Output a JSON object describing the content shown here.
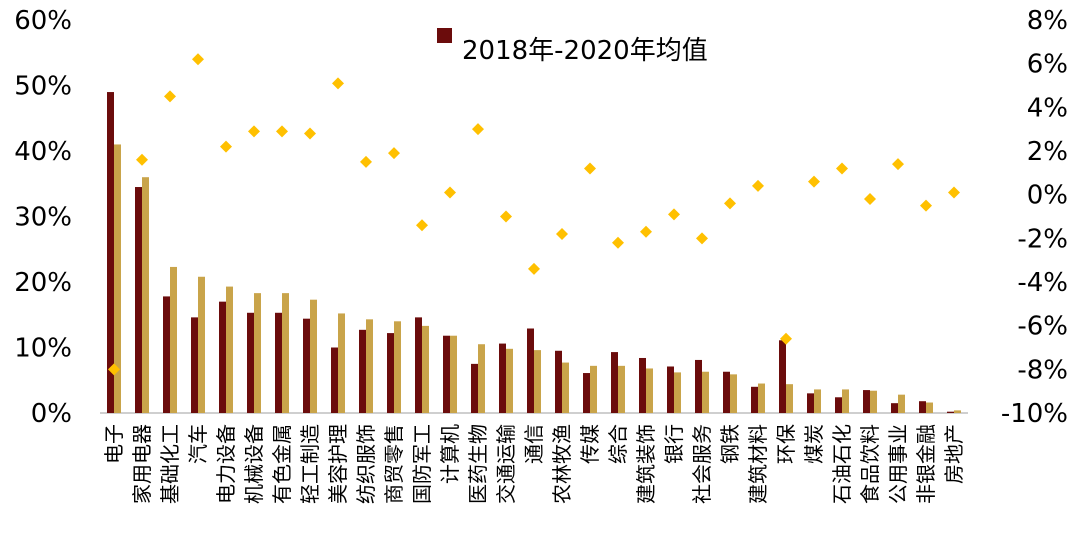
{
  "chart_data": {
    "type": "bar",
    "categories": [
      "电子",
      "家用电器",
      "基础化工",
      "汽车",
      "电力设备",
      "机械设备",
      "有色金属",
      "轻工制造",
      "美容护理",
      "纺织服饰",
      "商贸零售",
      "国防军工",
      "计算机",
      "医药生物",
      "交通运输",
      "通信",
      "农林牧渔",
      "传媒",
      "综合",
      "建筑装饰",
      "银行",
      "社会服务",
      "钢铁",
      "建筑材料",
      "环保",
      "煤炭",
      "石油石化",
      "食品饮料",
      "公用事业",
      "非银金融",
      "房地产"
    ],
    "series": [
      {
        "name": "2018年-2020年均值",
        "axis": "left",
        "color": "#6b0c0c",
        "values": [
          49.0,
          34.5,
          17.8,
          14.6,
          17.0,
          15.3,
          15.3,
          14.4,
          10.0,
          12.7,
          12.2,
          14.6,
          11.8,
          7.5,
          10.6,
          12.9,
          9.5,
          6.1,
          9.3,
          8.4,
          7.1,
          8.1,
          6.3,
          4.0,
          11.1,
          3.0,
          2.4,
          3.5,
          1.5,
          1.8,
          0.2
        ]
      },
      {
        "name": "",
        "axis": "left",
        "color": "#c9a44a",
        "values": [
          41.0,
          36.0,
          22.3,
          20.8,
          19.3,
          18.3,
          18.3,
          17.3,
          15.2,
          14.3,
          14.0,
          13.3,
          11.8,
          10.5,
          9.8,
          9.6,
          7.7,
          7.2,
          7.2,
          6.8,
          6.2,
          6.3,
          5.9,
          4.5,
          4.4,
          3.6,
          3.6,
          3.4,
          2.8,
          1.6,
          0.4
        ]
      },
      {
        "name": "",
        "axis": "right",
        "type": "scatter",
        "marker": "diamond",
        "color": "#ffc000",
        "values": [
          -8.0,
          1.6,
          4.5,
          6.2,
          2.2,
          2.9,
          2.9,
          2.8,
          5.1,
          1.5,
          1.9,
          -1.4,
          0.1,
          3.0,
          -1.0,
          -3.4,
          -1.8,
          1.2,
          -2.2,
          -1.7,
          -0.9,
          -2.0,
          -0.4,
          0.4,
          -6.6,
          0.6,
          1.2,
          -0.2,
          1.4,
          -0.5,
          0.1
        ]
      }
    ],
    "y_left": {
      "min": 0,
      "max": 60,
      "step": 10,
      "tick_labels": [
        "0%",
        "10%",
        "20%",
        "30%",
        "40%",
        "50%",
        "60%"
      ]
    },
    "y_right": {
      "min": -10,
      "max": 8,
      "step": 2,
      "tick_labels": [
        "-10%",
        "-8%",
        "-6%",
        "-4%",
        "-2%",
        "0%",
        "2%",
        "4%",
        "6%",
        "8%"
      ]
    },
    "legend": {
      "position": "top-center",
      "label": "2018年-2020年均值",
      "color": "#6b0c0c"
    },
    "title": "",
    "grid": false
  }
}
